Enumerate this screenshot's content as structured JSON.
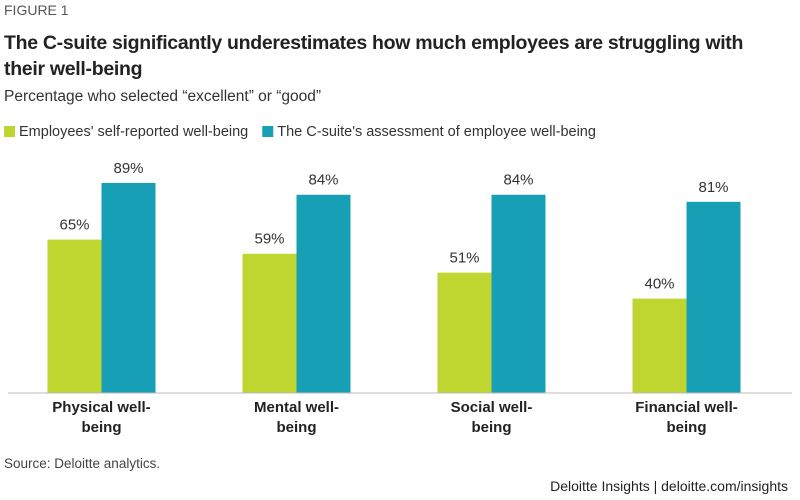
{
  "chart_data": {
    "type": "grouped_bar",
    "figure_label": "FIGURE 1",
    "title": "The C-suite significantly underestimates how much employees are struggling with their well-being",
    "subtitle": "Percentage who selected “excellent” or “good”",
    "categories": [
      "Physical well-being",
      "Mental well-being",
      "Social well-being",
      "Financial well-being"
    ],
    "series": [
      {
        "name": "Employees' self-reported well-being",
        "color": "#bfd630",
        "values": [
          65,
          59,
          51,
          40
        ],
        "value_labels": [
          "65%",
          "59%",
          "51%",
          "40%"
        ]
      },
      {
        "name": "The C-suite's assessment of employee well-being",
        "color": "#17a0b5",
        "values": [
          89,
          84,
          84,
          81
        ],
        "value_labels": [
          "89%",
          "84%",
          "84%",
          "81%"
        ]
      }
    ],
    "ylim": [
      0,
      100
    ],
    "source": "Source: Deloitte analytics.",
    "credit": "Deloitte Insights | deloitte.com/insights"
  }
}
